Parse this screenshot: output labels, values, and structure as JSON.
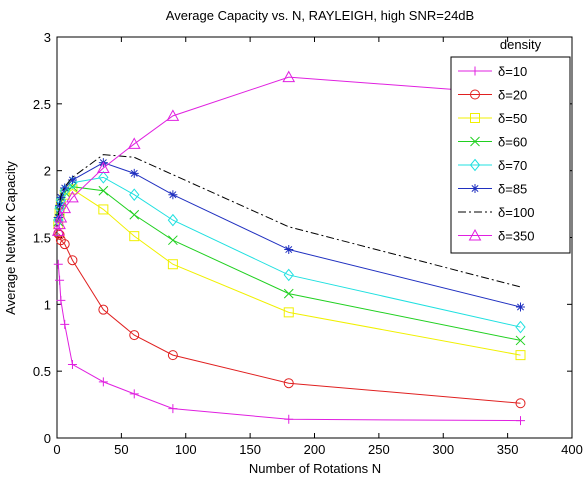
{
  "chart_data": {
    "type": "line",
    "title": "Average Capacity vs. N, RAYLEIGH, high SNR=24dB",
    "xlabel": "Number of Rotations N",
    "ylabel": "Average Network Capacity",
    "xlim": [
      0,
      400
    ],
    "ylim": [
      0,
      3
    ],
    "xticks": [
      "0",
      "50",
      "100",
      "150",
      "200",
      "250",
      "300",
      "350",
      "400"
    ],
    "yticks": [
      "0",
      "0.5",
      "1",
      "1.5",
      "2",
      "2.5",
      "3"
    ],
    "grid": false,
    "legend": {
      "title": "density",
      "placement": "top-right"
    },
    "x": [
      1,
      2,
      3,
      6,
      12,
      36,
      60,
      90,
      180,
      360
    ],
    "series": [
      {
        "name": "δ=10",
        "color": "#e020e0",
        "marker": "plus",
        "dash": "solid",
        "values": [
          1.3,
          1.18,
          1.03,
          0.85,
          0.55,
          0.42,
          0.33,
          0.22,
          0.14,
          null
        ]
      },
      {
        "name": "δ=20",
        "color": "#e02020",
        "marker": "circle",
        "dash": "solid",
        "values": [
          1.53,
          1.52,
          1.48,
          1.45,
          1.33,
          0.96,
          0.77,
          0.62,
          0.41,
          0.26
        ]
      },
      {
        "name": "δ=50",
        "color": "#f0f000",
        "marker": "square",
        "dash": "solid",
        "values": [
          1.6,
          1.68,
          1.75,
          1.82,
          1.86,
          1.71,
          1.51,
          1.3,
          0.94,
          0.62
        ]
      },
      {
        "name": "δ=60",
        "color": "#20d020",
        "marker": "x",
        "dash": "solid",
        "values": [
          1.62,
          1.7,
          1.77,
          1.84,
          1.88,
          1.85,
          1.67,
          1.48,
          1.08,
          0.73
        ]
      },
      {
        "name": "δ=70",
        "color": "#20e0e0",
        "marker": "diamond",
        "dash": "solid",
        "values": [
          1.63,
          1.72,
          1.78,
          1.85,
          1.91,
          1.95,
          1.82,
          1.63,
          1.22,
          0.83
        ]
      },
      {
        "name": "δ=85",
        "color": "#2030c0",
        "marker": "star",
        "dash": "solid",
        "values": [
          1.65,
          1.74,
          1.8,
          1.87,
          1.93,
          2.06,
          1.98,
          1.82,
          1.41,
          0.98
        ]
      },
      {
        "name": "δ=100",
        "color": "#000000",
        "marker": "none",
        "dash": "dashdot",
        "values": [
          1.66,
          1.75,
          1.81,
          1.88,
          1.95,
          2.12,
          2.1,
          1.97,
          1.58,
          1.13
        ]
      },
      {
        "name": "δ=350",
        "color": "#e020e0",
        "marker": "triangle",
        "dash": "solid",
        "values": [
          1.55,
          1.6,
          1.65,
          1.72,
          1.8,
          2.02,
          2.2,
          2.41,
          2.7,
          null
        ]
      }
    ],
    "series_extra_points": {
      "δ=10": {
        "x": 360,
        "y": 0.13
      },
      "δ=350": {
        "x": 360,
        "y": 2.57
      }
    }
  }
}
